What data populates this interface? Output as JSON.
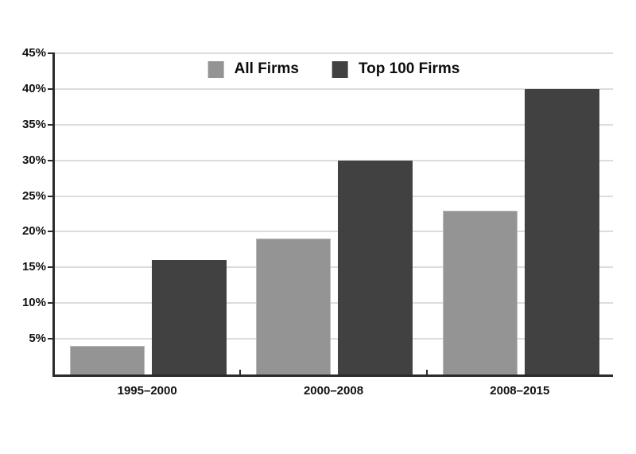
{
  "chart_data": {
    "type": "bar",
    "title": "",
    "categories": [
      "1995–2000",
      "2000–2008",
      "2008–2015"
    ],
    "series": [
      {
        "name": "All Firms",
        "color": "#949494",
        "values": [
          4,
          19,
          23
        ]
      },
      {
        "name": "Top 100 Firms",
        "color": "#414141",
        "values": [
          16,
          30,
          40
        ]
      }
    ],
    "xlabel": "",
    "ylabel": "",
    "ylim": [
      0,
      45
    ],
    "yticks": [
      5,
      10,
      15,
      20,
      25,
      30,
      35,
      40,
      45
    ],
    "ytick_suffix": "%",
    "grid": true,
    "legend_position": "top-center",
    "colors": {
      "background": "#ffffff",
      "gridline": "#dcdcdc",
      "spine": "#2b2b2b",
      "text": "#111111"
    }
  }
}
